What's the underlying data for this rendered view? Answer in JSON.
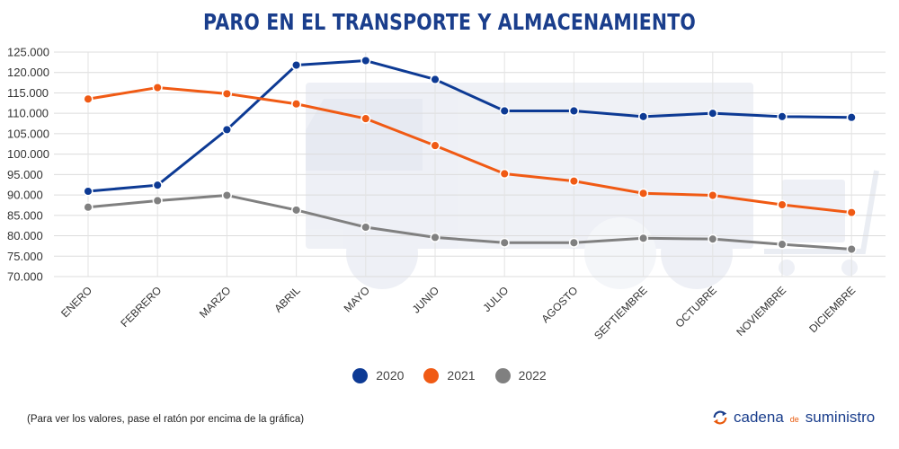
{
  "chart_data": {
    "type": "line",
    "title": "PARO EN EL TRANSPORTE Y ALMACENAMIENTO",
    "categories": [
      "ENERO",
      "FEBRERO",
      "MARZO",
      "ABRIL",
      "MAYO",
      "JUNIO",
      "JULIO",
      "AGOSTO",
      "SEPTIEMBRE",
      "OCTUBRE",
      "NOVIEMBRE",
      "DICIEMBRE"
    ],
    "ylim": [
      70000,
      125000
    ],
    "yticks": [
      "125.000",
      "120.000",
      "115.000",
      "110.000",
      "105.000",
      "100.000",
      "95.000",
      "90.000",
      "85.000",
      "80.000",
      "75.000",
      "70.000"
    ],
    "ytick_values": [
      125000,
      120000,
      115000,
      110000,
      105000,
      100000,
      95000,
      90000,
      85000,
      80000,
      75000,
      70000
    ],
    "grid": true,
    "legend_position": "bottom",
    "series": [
      {
        "name": "2020",
        "color": "#0d3a94",
        "values": [
          90900,
          92400,
          106000,
          121800,
          122900,
          118300,
          110600,
          110600,
          109200,
          110000,
          109200,
          109000
        ]
      },
      {
        "name": "2021",
        "color": "#f05a14",
        "values": [
          113500,
          116300,
          114800,
          112300,
          108700,
          102100,
          95200,
          93400,
          90400,
          89900,
          87600,
          85700
        ]
      },
      {
        "name": "2022",
        "color": "#808080",
        "values": [
          87000,
          88600,
          89900,
          86300,
          82100,
          79600,
          78300,
          78300,
          79400,
          79200,
          77900,
          76700
        ]
      }
    ]
  },
  "footnote": "(Para ver los valores, pase el ratón por encima de la gráfica)",
  "brand": {
    "part1": "cadena",
    "part2": "de",
    "part3": "suministro",
    "accent": "#e8590c",
    "icon": "refresh-arrows-icon"
  }
}
